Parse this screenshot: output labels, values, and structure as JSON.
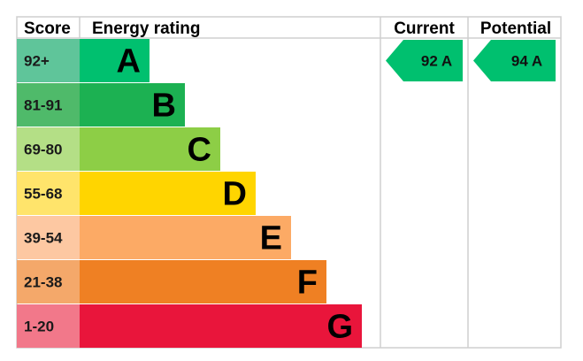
{
  "headers": {
    "score": "Score",
    "energy_rating": "Energy rating",
    "current": "Current",
    "potential": "Potential"
  },
  "chart_data": {
    "type": "bar",
    "bands": [
      {
        "letter": "A",
        "range": "92+",
        "score_color": "#5fc59a",
        "bar_color": "#00c06f"
      },
      {
        "letter": "B",
        "range": "81-91",
        "score_color": "#4fba6a",
        "bar_color": "#1cb152"
      },
      {
        "letter": "C",
        "range": "69-80",
        "score_color": "#b4df86",
        "bar_color": "#8dce46"
      },
      {
        "letter": "D",
        "range": "55-68",
        "score_color": "#ffe46b",
        "bar_color": "#ffd500"
      },
      {
        "letter": "E",
        "range": "39-54",
        "score_color": "#fdc8a2",
        "bar_color": "#fcaa65"
      },
      {
        "letter": "F",
        "range": "21-38",
        "score_color": "#f4a86a",
        "bar_color": "#ef8023"
      },
      {
        "letter": "G",
        "range": "1-20",
        "score_color": "#f2788a",
        "bar_color": "#e9153b"
      }
    ],
    "current": {
      "value": 92,
      "band": "A",
      "label": "92  A",
      "color": "#00c06f"
    },
    "potential": {
      "value": 94,
      "band": "A",
      "label": "94  A",
      "color": "#00c06f"
    }
  }
}
